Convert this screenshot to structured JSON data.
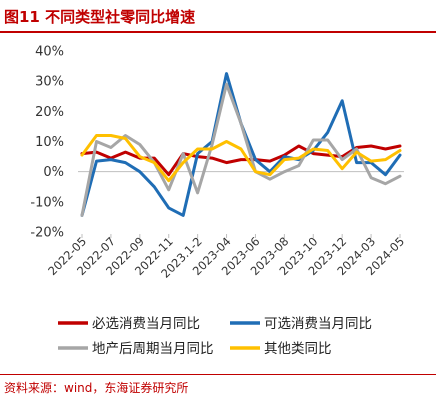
{
  "header": {
    "title": "图11  不同类型社零同比增速"
  },
  "footer": {
    "source": "资料来源：wind，东海证券研究所"
  },
  "colors": {
    "accent": "#c00000"
  },
  "chart_data": {
    "type": "line",
    "title": "",
    "xlabel": "",
    "ylabel": "",
    "ylim": [
      -20,
      40
    ],
    "yticks": [
      "40%",
      "30%",
      "20%",
      "10%",
      "0%",
      "-10%",
      "-20%"
    ],
    "ytick_values": [
      40,
      30,
      20,
      10,
      0,
      -10,
      -20
    ],
    "x": [
      "2022-05",
      "2022-06",
      "2022-07",
      "2022-08",
      "2022-09",
      "2022-10",
      "2022-11",
      "2022-12",
      "2023.1-2",
      "2023-03",
      "2023-04",
      "2023-05",
      "2023-06",
      "2023-07",
      "2023-08",
      "2023-09",
      "2023-10",
      "2023-11",
      "2023-12",
      "2024.1-2",
      "2024-03",
      "2024-04",
      "2024-05"
    ],
    "xtick_labels": [
      "2022-05",
      "2022-07",
      "2022-09",
      "2022-11",
      "2023.1-2",
      "2023-04",
      "2023-06",
      "2023-08",
      "2023-10",
      "2023-12",
      "2024-03",
      "2024-05"
    ],
    "xtick_index": [
      0,
      2,
      4,
      6,
      8,
      10,
      12,
      14,
      16,
      18,
      20,
      22
    ],
    "grid": false,
    "legend_position": "bottom",
    "series": [
      {
        "name": "必选消费当月同比",
        "color": "#c00000",
        "values": [
          6,
          6.5,
          4.5,
          6.5,
          4.5,
          4.5,
          -1,
          6,
          5,
          4.5,
          3,
          4,
          4,
          3.5,
          5.5,
          8.5,
          6,
          5.5,
          5,
          8,
          8.5,
          7.5,
          8.5
        ]
      },
      {
        "name": "可选消费当月同比",
        "color": "#1f6db5",
        "values": [
          -14.5,
          3.5,
          4,
          3,
          0,
          -5,
          -12,
          -14.5,
          6,
          10,
          32.5,
          16,
          4,
          0,
          5,
          4,
          7,
          13,
          23.5,
          3,
          3,
          -1,
          5.5
        ]
      },
      {
        "name": "地产后周期当月同比",
        "color": "#a6a6a6",
        "values": [
          -14.5,
          10,
          8,
          12,
          9,
          3,
          -6,
          6,
          -7,
          9,
          29,
          16,
          0,
          -2.5,
          0,
          2,
          10.5,
          10.5,
          4,
          7.5,
          -2,
          -4,
          -1.5
        ]
      },
      {
        "name": "其他类同比",
        "color": "#ffc000",
        "values": [
          5.5,
          12,
          12,
          11,
          5,
          3,
          -3,
          3,
          7.5,
          7.5,
          10,
          7.5,
          0,
          -1,
          4,
          4.5,
          7.5,
          7,
          1,
          6.5,
          3.5,
          4,
          7
        ]
      }
    ]
  }
}
